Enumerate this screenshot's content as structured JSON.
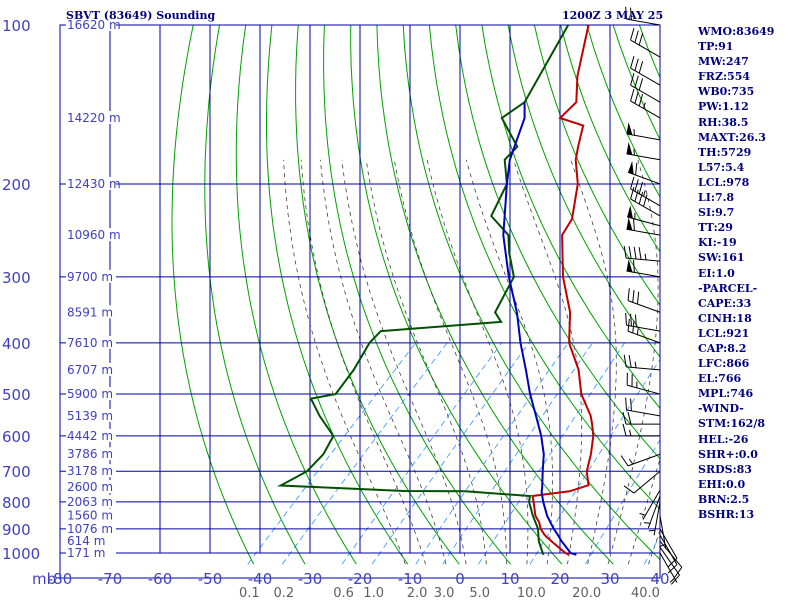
{
  "header": {
    "station": "SBVT (83649) Sounding",
    "time": "1200Z  3 MAY 25"
  },
  "colors": {
    "grid": "#0000a0",
    "label": "#4040c0",
    "dry_adiabat": "#00a000",
    "moist_adiabat": "#404040",
    "mixing_ratio": "#3090ff",
    "temperature": "#c00000",
    "dewpoint": "#005000",
    "parcel": "#0000c0",
    "wind_barb": "#000000"
  },
  "chart_data": {
    "type": "skew-t",
    "title": "SBVT (83649) Sounding",
    "subtitle": "1200Z  3 MAY 25",
    "yaxis": {
      "unit": "mb",
      "scale": "log",
      "ylim": [
        1000,
        100
      ],
      "ticks": [
        100,
        200,
        300,
        400,
        500,
        600,
        700,
        800,
        900,
        1000
      ]
    },
    "xaxis": {
      "unit": "C",
      "xlim": [
        -80,
        40
      ],
      "ticks": [
        -80,
        -70,
        -60,
        -50,
        -40,
        -30,
        -20,
        -10,
        0,
        10,
        20,
        30,
        40
      ]
    },
    "mixing_ratio_labels": [
      "0.1",
      "0.2",
      "0.6",
      "1.0",
      "2.0",
      "3.0",
      "5.0",
      "10.0",
      "20.0",
      "40.0"
    ],
    "mixing_ratio_values": [
      0.1,
      0.2,
      0.6,
      1.0,
      2.0,
      3.0,
      5.0,
      10.0,
      20.0,
      40.0
    ],
    "mixing_ratio_unit": "g/kg",
    "height_labels": [
      {
        "p": 100,
        "label": "16620 m"
      },
      {
        "p": 150,
        "label": "14220 m"
      },
      {
        "p": 200,
        "label": "12430 m"
      },
      {
        "p": 250,
        "label": "10960 m"
      },
      {
        "p": 300,
        "label": "9700 m"
      },
      {
        "p": 350,
        "label": "8591 m"
      },
      {
        "p": 400,
        "label": "7610 m"
      },
      {
        "p": 450,
        "label": "6707 m"
      },
      {
        "p": 500,
        "label": "5900 m"
      },
      {
        "p": 550,
        "label": "5139 m"
      },
      {
        "p": 600,
        "label": "4442 m"
      },
      {
        "p": 650,
        "label": "3786 m"
      },
      {
        "p": 700,
        "label": "3178 m"
      },
      {
        "p": 750,
        "label": "2600 m"
      },
      {
        "p": 800,
        "label": "2063 m"
      },
      {
        "p": 850,
        "label": "1560 m"
      },
      {
        "p": 900,
        "label": "1076 m"
      },
      {
        "p": 950,
        "label": "614 m"
      },
      {
        "p": 1000,
        "label": "171 m"
      }
    ],
    "series": [
      {
        "name": "temperature",
        "points": [
          [
            1008,
            20.5
          ],
          [
            1000,
            19.5
          ],
          [
            975,
            17.0
          ],
          [
            950,
            14.5
          ],
          [
            925,
            12.0
          ],
          [
            900,
            10.0
          ],
          [
            875,
            8.5
          ],
          [
            850,
            6.5
          ],
          [
            800,
            3.5
          ],
          [
            780,
            2.2
          ],
          [
            764,
            8.6
          ],
          [
            744,
            11.2
          ],
          [
            700,
            8.2
          ],
          [
            650,
            5.8
          ],
          [
            600,
            2.8
          ],
          [
            572,
            0.5
          ],
          [
            550,
            -1.5
          ],
          [
            500,
            -7.5
          ],
          [
            450,
            -12.6
          ],
          [
            400,
            -19.6
          ],
          [
            350,
            -25.2
          ],
          [
            300,
            -33.3
          ],
          [
            250,
            -41.4
          ],
          [
            233,
            -42.5
          ],
          [
            200,
            -48.0
          ],
          [
            180,
            -53.0
          ],
          [
            170,
            -55.0
          ],
          [
            155,
            -58.0
          ],
          [
            150,
            -64.0
          ],
          [
            140,
            -63.8
          ],
          [
            125,
            -68.5
          ],
          [
            100,
            -76.0
          ]
        ]
      },
      {
        "name": "dewpoint",
        "points": [
          [
            1008,
            15.5
          ],
          [
            1000,
            15.0
          ],
          [
            950,
            12.0
          ],
          [
            900,
            9.5
          ],
          [
            850,
            6.0
          ],
          [
            800,
            2.6
          ],
          [
            780,
            1.7
          ],
          [
            764,
            -12.0
          ],
          [
            763,
            -24.0
          ],
          [
            745,
            -49.5
          ],
          [
            700,
            -47.0
          ],
          [
            650,
            -47.0
          ],
          [
            600,
            -48.5
          ],
          [
            550,
            -55.0
          ],
          [
            510,
            -60.0
          ],
          [
            500,
            -56.0
          ],
          [
            450,
            -57.0
          ],
          [
            400,
            -59.0
          ],
          [
            380,
            -59.0
          ],
          [
            365,
            -37.0
          ],
          [
            350,
            -40.0
          ],
          [
            300,
            -43.0
          ],
          [
            270,
            -48.5
          ],
          [
            250,
            -52.0
          ],
          [
            230,
            -59.0
          ],
          [
            200,
            -62.0
          ],
          [
            180,
            -67.0
          ],
          [
            170,
            -67.0
          ],
          [
            150,
            -75.5
          ],
          [
            140,
            -74.0
          ],
          [
            100,
            -80.0
          ]
        ]
      },
      {
        "name": "parcel",
        "points": [
          [
            1008,
            22.0
          ],
          [
            1000,
            20.5
          ],
          [
            950,
            16.5
          ],
          [
            921,
            14.3
          ],
          [
            900,
            12.6
          ],
          [
            850,
            8.8
          ],
          [
            800,
            5.4
          ],
          [
            766,
            3.2
          ],
          [
            750,
            2.4
          ],
          [
            700,
            -0.5
          ],
          [
            650,
            -3.5
          ],
          [
            600,
            -7.5
          ],
          [
            550,
            -12.3
          ],
          [
            500,
            -17.6
          ],
          [
            450,
            -23.0
          ],
          [
            400,
            -29.2
          ],
          [
            350,
            -35.7
          ],
          [
            300,
            -44.0
          ],
          [
            250,
            -53.0
          ],
          [
            200,
            -62.0
          ],
          [
            180,
            -66.0
          ],
          [
            150,
            -71.0
          ],
          [
            140,
            -74.0
          ]
        ]
      }
    ],
    "wind_barbs": [
      {
        "p": 1000,
        "dir": 150,
        "spd": 5
      },
      {
        "p": 975,
        "dir": 145,
        "spd": 10
      },
      {
        "p": 950,
        "dir": 140,
        "spd": 10
      },
      {
        "p": 925,
        "dir": 150,
        "spd": 10
      },
      {
        "p": 900,
        "dir": 150,
        "spd": 10
      },
      {
        "p": 850,
        "dir": 170,
        "spd": 5
      },
      {
        "p": 800,
        "dir": 190,
        "spd": 5
      },
      {
        "p": 780,
        "dir": 200,
        "spd": 5
      },
      {
        "p": 760,
        "dir": 210,
        "spd": 5
      },
      {
        "p": 700,
        "dir": 230,
        "spd": 10
      },
      {
        "p": 650,
        "dir": 250,
        "spd": 15
      },
      {
        "p": 600,
        "dir": 270,
        "spd": 15
      },
      {
        "p": 570,
        "dir": 270,
        "spd": 20
      },
      {
        "p": 550,
        "dir": 280,
        "spd": 20
      },
      {
        "p": 500,
        "dir": 285,
        "spd": 25
      },
      {
        "p": 450,
        "dir": 275,
        "spd": 25
      },
      {
        "p": 400,
        "dir": 290,
        "spd": 25
      },
      {
        "p": 380,
        "dir": 280,
        "spd": 30
      },
      {
        "p": 350,
        "dir": 290,
        "spd": 30
      },
      {
        "p": 300,
        "dir": 280,
        "spd": 60
      },
      {
        "p": 280,
        "dir": 275,
        "spd": 45
      },
      {
        "p": 250,
        "dir": 280,
        "spd": 60
      },
      {
        "p": 240,
        "dir": 285,
        "spd": 55
      },
      {
        "p": 230,
        "dir": 300,
        "spd": 40
      },
      {
        "p": 220,
        "dir": 300,
        "spd": 35
      },
      {
        "p": 200,
        "dir": 290,
        "spd": 60
      },
      {
        "p": 180,
        "dir": 280,
        "spd": 55
      },
      {
        "p": 165,
        "dir": 280,
        "spd": 55
      },
      {
        "p": 150,
        "dir": 300,
        "spd": 35
      },
      {
        "p": 140,
        "dir": 300,
        "spd": 30
      },
      {
        "p": 130,
        "dir": 300,
        "spd": 30
      },
      {
        "p": 115,
        "dir": 300,
        "spd": 30
      },
      {
        "p": 100,
        "dir": 280,
        "spd": 20
      }
    ]
  },
  "stats": [
    "WMO:83649",
    "TP:91",
    "MW:247",
    "FRZ:554",
    "WB0:735",
    "PW:1.12",
    "RH:38.5",
    "MAXT:26.3",
    "TH:5729",
    "L57:5.4",
    "LCL:978",
    "LI:7.8",
    "SI:9.7",
    "TT:29",
    "KI:-19",
    "SW:161",
    "EI:1.0",
    "-PARCEL-",
    "CAPE:33",
    "CINH:18",
    "LCL:921",
    "CAP:8.2",
    "LFC:866",
    "EL:766",
    "MPL:746",
    "-WIND-",
    "STM:162/8",
    "HEL:-26",
    "SHR+:0.0",
    "SRDS:83",
    "EHI:0.0",
    "BRN:2.5",
    "BSHR:13"
  ]
}
